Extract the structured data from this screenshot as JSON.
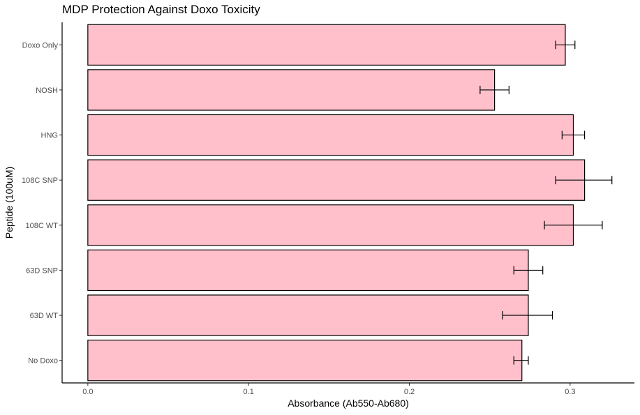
{
  "chart_data": {
    "type": "bar",
    "orientation": "horizontal",
    "title": "MDP Protection Against Doxo Toxicity",
    "xlabel": "Absorbance (Ab550-Ab680)",
    "ylabel": "Peptide (100uM)",
    "categories": [
      "Doxo Only",
      "NOSH",
      "HNG",
      "108C SNP",
      "108C WT",
      "63D SNP",
      "63D WT",
      "No Doxo"
    ],
    "values": [
      0.297,
      0.253,
      0.302,
      0.309,
      0.302,
      0.274,
      0.274,
      0.27
    ],
    "error_low": [
      0.291,
      0.244,
      0.295,
      0.291,
      0.284,
      0.265,
      0.258,
      0.265
    ],
    "error_high": [
      0.303,
      0.262,
      0.309,
      0.326,
      0.32,
      0.283,
      0.289,
      0.274
    ],
    "xlim": [
      -0.016,
      0.34
    ],
    "xticks": [
      0.0,
      0.1,
      0.2,
      0.3
    ],
    "xtick_labels": [
      "0.0",
      "0.1",
      "0.2",
      "0.3"
    ],
    "grid": false,
    "legend": "none",
    "bar_color": "#ffc0cb",
    "bar_edge_color": "#000000"
  }
}
